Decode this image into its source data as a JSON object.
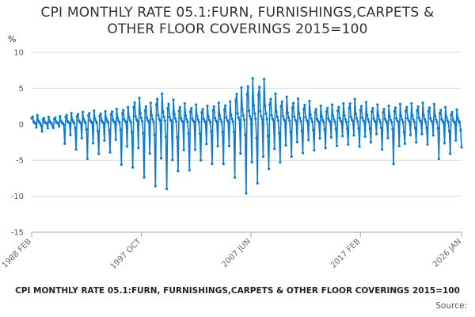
{
  "title_lines": [
    "CPI MONTHLY RATE 05.1:FURN, FURNISHINGS,CARPETS &",
    "OTHER FLOOR COVERINGS 2015=100"
  ],
  "footer_title": "CPI MONTHLY RATE 05.1:FURN, FURNISHINGS,CARPETS & OTHER FLOOR COVERINGS 2015=100",
  "source": "Source:",
  "colors": {
    "line": "#0d7bd0",
    "grid": "#dcdcdc",
    "axis": "#aaaaaa"
  },
  "chart_data": {
    "type": "line",
    "title": "CPI MONTHLY RATE 05.1:FURN, FURNISHINGS,CARPETS & OTHER FLOOR COVERINGS 2015=100",
    "ylabel": "%",
    "ylim": [
      -15,
      10
    ],
    "yticks": [
      10,
      5,
      0,
      -5,
      -10,
      -15
    ],
    "xticks": [
      "1988 FEB",
      "1997 OCT",
      "2007 JUN",
      "2017 FEB",
      "2026 JAN"
    ],
    "x_start": "1988 FEB",
    "x_end": "2026 JAN",
    "grid": true,
    "markers": true,
    "series": [
      {
        "name": "",
        "approximate_annual_pattern": "Monthly rates oscillate around 0; recurring January sale dips and spring/summer rebounds",
        "annual_extremes": [
          {
            "year": 1988,
            "max": 1.5,
            "min": -0.8
          },
          {
            "year": 1989,
            "max": 1.2,
            "min": -1.0
          },
          {
            "year": 1990,
            "max": 1.3,
            "min": -0.5
          },
          {
            "year": 1991,
            "max": 1.8,
            "min": -2.7
          },
          {
            "year": 1992,
            "max": 2.0,
            "min": -3.5
          },
          {
            "year": 1993,
            "max": 2.2,
            "min": -4.8
          },
          {
            "year": 1994,
            "max": 2.1,
            "min": -4.1
          },
          {
            "year": 1995,
            "max": 2.5,
            "min": -3.9
          },
          {
            "year": 1996,
            "max": 2.8,
            "min": -5.6
          },
          {
            "year": 1997,
            "max": 4.3,
            "min": -6.0
          },
          {
            "year": 1998,
            "max": 3.5,
            "min": -7.4
          },
          {
            "year": 1999,
            "max": 5.0,
            "min": -8.6
          },
          {
            "year": 2000,
            "max": 4.0,
            "min": -9.0
          },
          {
            "year": 2001,
            "max": 3.4,
            "min": -6.5
          },
          {
            "year": 2002,
            "max": 3.2,
            "min": -6.4
          },
          {
            "year": 2003,
            "max": 3.0,
            "min": -5.0
          },
          {
            "year": 2004,
            "max": 3.5,
            "min": -5.5
          },
          {
            "year": 2005,
            "max": 3.7,
            "min": -5.5
          },
          {
            "year": 2006,
            "max": 6.0,
            "min": -7.4
          },
          {
            "year": 2007,
            "max": 7.5,
            "min": -9.6
          },
          {
            "year": 2008,
            "max": 7.4,
            "min": -8.2
          },
          {
            "year": 2009,
            "max": 5.0,
            "min": -6.2
          },
          {
            "year": 2010,
            "max": 4.5,
            "min": -5.3
          },
          {
            "year": 2011,
            "max": 4.2,
            "min": -4.5
          },
          {
            "year": 2012,
            "max": 3.8,
            "min": -4.0
          },
          {
            "year": 2013,
            "max": 3.0,
            "min": -3.6
          },
          {
            "year": 2014,
            "max": 3.2,
            "min": -3.3
          },
          {
            "year": 2015,
            "max": 3.4,
            "min": -3.0
          },
          {
            "year": 2016,
            "max": 4.1,
            "min": -2.8
          },
          {
            "year": 2017,
            "max": 3.6,
            "min": -3.1
          },
          {
            "year": 2018,
            "max": 3.2,
            "min": -2.5
          },
          {
            "year": 2019,
            "max": 3.0,
            "min": -3.5
          },
          {
            "year": 2020,
            "max": 3.3,
            "min": -5.5
          },
          {
            "year": 2021,
            "max": 3.4,
            "min": -2.7
          },
          {
            "year": 2022,
            "max": 3.5,
            "min": -2.5
          },
          {
            "year": 2023,
            "max": 3.3,
            "min": -2.8
          },
          {
            "year": 2024,
            "max": 2.8,
            "min": -4.8
          },
          {
            "year": 2025,
            "max": 2.4,
            "min": -4.1
          },
          {
            "year": 2026,
            "max": 1.8,
            "min": -3.2
          }
        ]
      }
    ]
  }
}
